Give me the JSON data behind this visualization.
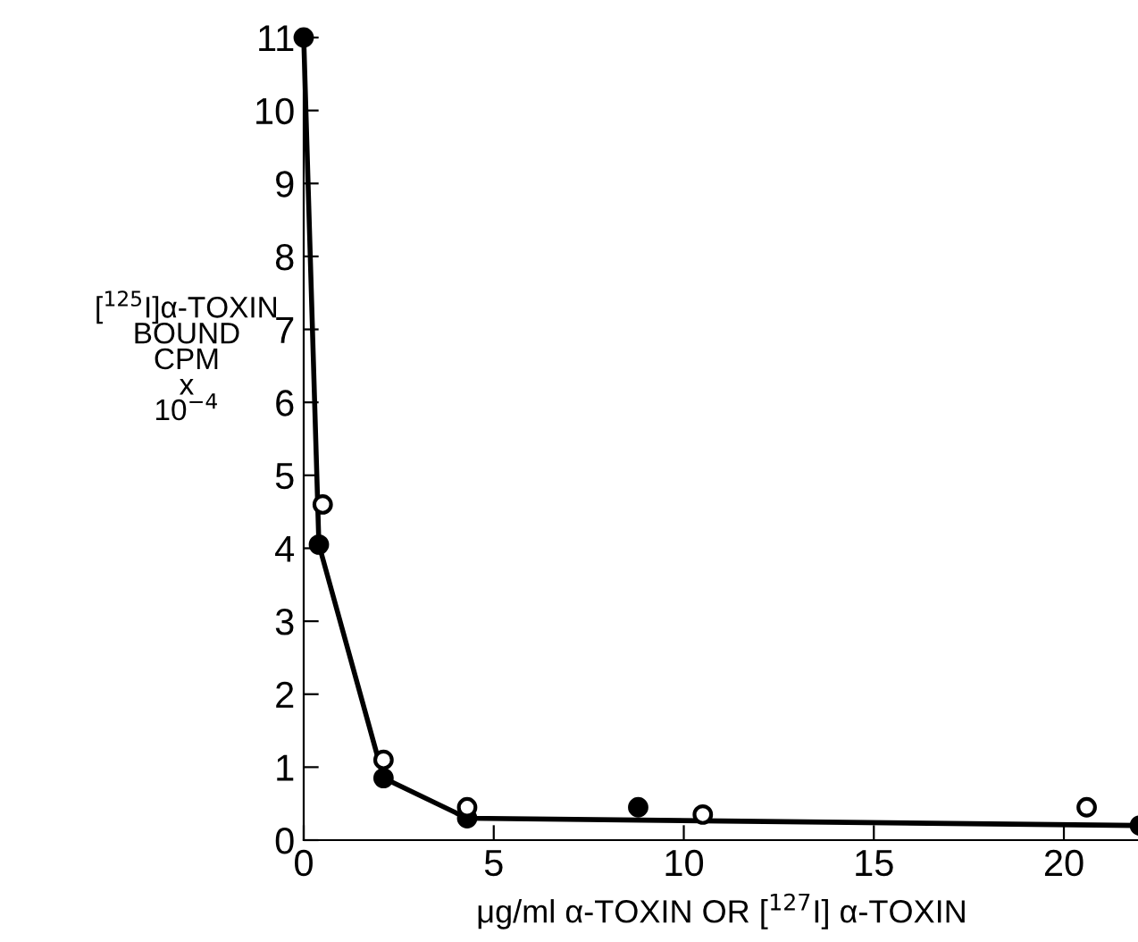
{
  "chart_data": {
    "type": "scatter",
    "xlabel": "μg/ml α-TOXIN OR [$^{127}$I] α-TOXIN",
    "ylabel": "[$^{125}$I]α-TOXIN\nBOUND\nCPM\nx\n10$^{−4}$",
    "series": [
      {
        "type": "line",
        "color": "#000000",
        "marker": "none",
        "x": [
          0,
          0.4,
          2.1,
          4.3,
          22
        ],
        "values": [
          11,
          4.05,
          0.85,
          0.3,
          0.2
        ]
      },
      {
        "color": "#000000",
        "marker": "circle",
        "x": [
          0,
          0.4,
          2.1,
          4.3,
          8.8,
          22
        ],
        "values": [
          11,
          4.05,
          0.85,
          0.3,
          0.45,
          0.2
        ]
      },
      {
        "color": "#ffffff",
        "marker": "circle",
        "x": [
          0.5,
          2.1,
          4.3,
          10.5,
          20.6
        ],
        "values": [
          4.6,
          1.1,
          0.45,
          0.35,
          0.45
        ]
      }
    ],
    "xlim": [
      0,
      22
    ],
    "ylim": [
      0,
      11
    ],
    "xticks": [
      0,
      5,
      10,
      15,
      20
    ],
    "yticks": [
      0,
      1,
      2,
      3,
      4,
      5,
      6,
      7,
      8,
      9,
      10,
      11
    ],
    "grid": false,
    "legend": false
  }
}
